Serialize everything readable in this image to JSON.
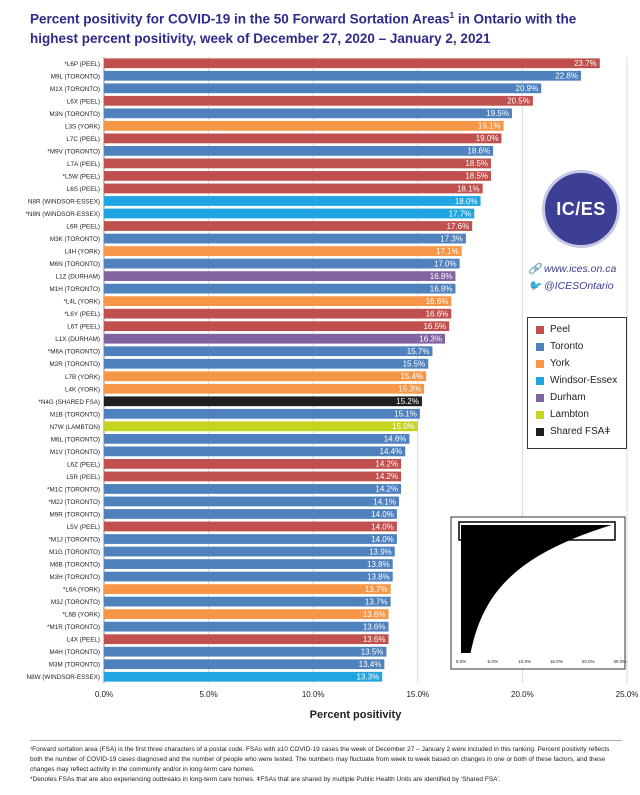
{
  "title_main": "Percent positivity for COVID-19 in the 50 Forward Sortation Areas",
  "title_sup": "1",
  "title_rest": " in Ontario with the highest percent positivity, week of December 27, 2020 – January 2, 2021",
  "logo_text": "IC/ES",
  "website": "www.ices.on.ca",
  "twitter": "@ICESOntario",
  "colors": {
    "Peel": "#c0504d",
    "Toronto": "#4f81bd",
    "York": "#f79646",
    "Windsor-Essex": "#1fa5e2",
    "Durham": "#8064a2",
    "Lambton": "#c5d51f",
    "Shared FSA": "#1f1f1f"
  },
  "legend": [
    {
      "label": "Peel",
      "key": "Peel"
    },
    {
      "label": "Toronto",
      "key": "Toronto"
    },
    {
      "label": "York",
      "key": "York"
    },
    {
      "label": "Windsor-Essex",
      "key": "Windsor-Essex"
    },
    {
      "label": "Durham",
      "key": "Durham"
    },
    {
      "label": "Lambton",
      "key": "Lambton"
    },
    {
      "label": "Shared FSAǂ",
      "key": "Shared FSA"
    }
  ],
  "chart_data": {
    "type": "bar",
    "orientation": "horizontal",
    "xlabel": "Percent positivity",
    "xlim": [
      0,
      25
    ],
    "x_ticks": [
      "0.0%",
      "5.0%",
      "10.0%",
      "15.0%",
      "20.0%",
      "25.0%"
    ],
    "grid": true,
    "legend_position": "right",
    "bars": [
      {
        "label": "*L6P (PEEL)",
        "value": 23.7,
        "text": "23.7%",
        "region": "Peel"
      },
      {
        "label": "M9L (TORONTO)",
        "value": 22.8,
        "text": "22.8%",
        "region": "Toronto"
      },
      {
        "label": "M1X (TORONTO)",
        "value": 20.9,
        "text": "20.9%",
        "region": "Toronto"
      },
      {
        "label": "L6X (PEEL)",
        "value": 20.5,
        "text": "20.5%",
        "region": "Peel"
      },
      {
        "label": "M3N (TORONTO)",
        "value": 19.5,
        "text": "19.5%",
        "region": "Toronto"
      },
      {
        "label": "L3S (YORK)",
        "value": 19.1,
        "text": "19.1%",
        "region": "York"
      },
      {
        "label": "L7C (PEEL)",
        "value": 19.0,
        "text": "19.0%",
        "region": "Peel"
      },
      {
        "label": "*M9V (TORONTO)",
        "value": 18.6,
        "text": "18.6%",
        "region": "Toronto"
      },
      {
        "label": "L7A (PEEL)",
        "value": 18.5,
        "text": "18.5%",
        "region": "Peel"
      },
      {
        "label": "*L5W (PEEL)",
        "value": 18.5,
        "text": "18.5%",
        "region": "Peel"
      },
      {
        "label": "L6S (PEEL)",
        "value": 18.1,
        "text": "18.1%",
        "region": "Peel"
      },
      {
        "label": "N8R (WINDSOR-ESSEX)",
        "value": 18.0,
        "text": "18.0%",
        "region": "Windsor-Essex"
      },
      {
        "label": "*N8N (WINDSOR-ESSEX)",
        "value": 17.7,
        "text": "17.7%",
        "region": "Windsor-Essex"
      },
      {
        "label": "L6R (PEEL)",
        "value": 17.6,
        "text": "17.6%",
        "region": "Peel"
      },
      {
        "label": "M3K (TORONTO)",
        "value": 17.3,
        "text": "17.3%",
        "region": "Toronto"
      },
      {
        "label": "L4H (YORK)",
        "value": 17.1,
        "text": "17.1%",
        "region": "York"
      },
      {
        "label": "M6N (TORONTO)",
        "value": 17.0,
        "text": "17.0%",
        "region": "Toronto"
      },
      {
        "label": "L1Z (DURHAM)",
        "value": 16.8,
        "text": "16.8%",
        "region": "Durham"
      },
      {
        "label": "M1H (TORONTO)",
        "value": 16.8,
        "text": "16.8%",
        "region": "Toronto"
      },
      {
        "label": "*L4L (YORK)",
        "value": 16.6,
        "text": "16.6%",
        "region": "York"
      },
      {
        "label": "*L6Y (PEEL)",
        "value": 16.6,
        "text": "16.6%",
        "region": "Peel"
      },
      {
        "label": "L6T (PEEL)",
        "value": 16.5,
        "text": "16.5%",
        "region": "Peel"
      },
      {
        "label": "L1X (DURHAM)",
        "value": 16.3,
        "text": "16.3%",
        "region": "Durham"
      },
      {
        "label": "*M6A (TORONTO)",
        "value": 15.7,
        "text": "15.7%",
        "region": "Toronto"
      },
      {
        "label": "M2R (TORONTO)",
        "value": 15.5,
        "text": "15.5%",
        "region": "Toronto"
      },
      {
        "label": "L7B (YORK)",
        "value": 15.4,
        "text": "15.4%",
        "region": "York"
      },
      {
        "label": "L4K (YORK)",
        "value": 15.3,
        "text": "15.3%",
        "region": "York"
      },
      {
        "label": "*N4G (SHARED FSA)",
        "value": 15.2,
        "text": "15.2%",
        "region": "Shared FSA"
      },
      {
        "label": "M1B (TORONTO)",
        "value": 15.1,
        "text": "15.1%",
        "region": "Toronto"
      },
      {
        "label": "N7W (LAMBTON)",
        "value": 15.0,
        "text": "15.0%",
        "region": "Lambton"
      },
      {
        "label": "M6L (TORONTO)",
        "value": 14.6,
        "text": "14.6%",
        "region": "Toronto"
      },
      {
        "label": "M1V (TORONTO)",
        "value": 14.4,
        "text": "14.4%",
        "region": "Toronto"
      },
      {
        "label": "L6Z (PEEL)",
        "value": 14.2,
        "text": "14.2%",
        "region": "Peel"
      },
      {
        "label": "L5R (PEEL)",
        "value": 14.2,
        "text": "14.2%",
        "region": "Peel"
      },
      {
        "label": "*M1C (TORONTO)",
        "value": 14.2,
        "text": "14.2%",
        "region": "Toronto"
      },
      {
        "label": "*M2J (TORONTO)",
        "value": 14.1,
        "text": "14.1%",
        "region": "Toronto"
      },
      {
        "label": "M9R (TORONTO)",
        "value": 14.0,
        "text": "14.0%",
        "region": "Toronto"
      },
      {
        "label": "L5V (PEEL)",
        "value": 14.0,
        "text": "14.0%",
        "region": "Peel"
      },
      {
        "label": "*M1J (TORONTO)",
        "value": 14.0,
        "text": "14.0%",
        "region": "Toronto"
      },
      {
        "label": "M1G (TORONTO)",
        "value": 13.9,
        "text": "13.9%",
        "region": "Toronto"
      },
      {
        "label": "M6B (TORONTO)",
        "value": 13.8,
        "text": "13.8%",
        "region": "Toronto"
      },
      {
        "label": "M3H (TORONTO)",
        "value": 13.8,
        "text": "13.8%",
        "region": "Toronto"
      },
      {
        "label": "*L6A (YORK)",
        "value": 13.7,
        "text": "13.7%",
        "region": "York"
      },
      {
        "label": "M3J (TORONTO)",
        "value": 13.7,
        "text": "13.7%",
        "region": "Toronto"
      },
      {
        "label": "*L6B (YORK)",
        "value": 13.6,
        "text": "13.6%",
        "region": "York"
      },
      {
        "label": "*M1R (TORONTO)",
        "value": 13.6,
        "text": "13.6%",
        "region": "Toronto"
      },
      {
        "label": "L4X (PEEL)",
        "value": 13.6,
        "text": "13.6%",
        "region": "Peel"
      },
      {
        "label": "M4H (TORONTO)",
        "value": 13.5,
        "text": "13.5%",
        "region": "Toronto"
      },
      {
        "label": "M3M (TORONTO)",
        "value": 13.4,
        "text": "13.4%",
        "region": "Toronto"
      },
      {
        "label": "N8W (WINDSOR-ESSEX)",
        "value": 13.3,
        "text": "13.3%",
        "region": "Windsor-Essex"
      }
    ]
  },
  "inset": {
    "x_ticks": [
      "0.0%",
      "5.0%",
      "10.0%",
      "15.0%",
      "20.0%",
      "25.0%"
    ]
  },
  "footnotes": [
    "¹Forward sortation area (FSA) is the first three characters of a postal code. FSAs with ≥10 COVID-19 cases the week of December 27 – January 2 were included in this ranking. Percent positivity reflects both the number of COVID-19 cases diagnosed and the number of people who were tested. The numbers may fluctuate from week to week based on changes in one or both of these factors, and these changes may reflect activity in the community and/or in long-term care homes.",
    "*Denotes FSAs that are also experiencing outbreaks in long-term care homes. ǂFSAs that are shared by multiple Public Health Units are identified by 'Shared FSA'."
  ]
}
